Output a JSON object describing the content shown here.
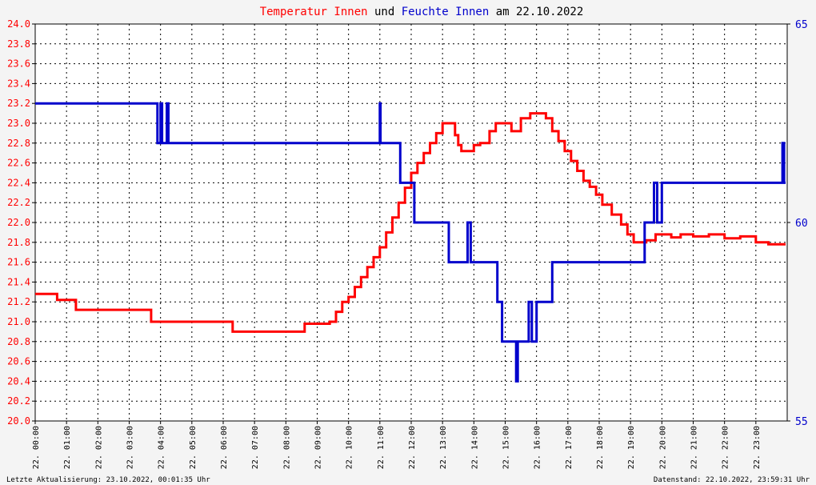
{
  "chart_data": {
    "type": "line",
    "title_parts": {
      "t1": "Temperatur Innen",
      "t2": " und ",
      "t3": "Feuchte Innen",
      "t4": " am 22.10.2022"
    },
    "left_axis": {
      "ylim": [
        20.0,
        24.0
      ],
      "ticks": [
        "20.0",
        "20.2",
        "20.4",
        "20.6",
        "20.8",
        "21.0",
        "21.2",
        "21.4",
        "21.6",
        "21.8",
        "22.0",
        "22.2",
        "22.4",
        "22.6",
        "22.8",
        "23.0",
        "23.2",
        "23.4",
        "23.6",
        "23.8",
        "24.0"
      ],
      "color": "#ff0000"
    },
    "right_axis": {
      "ylim": [
        55,
        65
      ],
      "ticks": [
        "55",
        "60",
        "65"
      ],
      "color": "#0000cc"
    },
    "x_axis": {
      "xlim": [
        0,
        24
      ],
      "ticks": [
        "22. 00:00",
        "22. 01:00",
        "22. 02:00",
        "22. 03:00",
        "22. 04:00",
        "22. 05:00",
        "22. 06:00",
        "22. 07:00",
        "22. 08:00",
        "22. 09:00",
        "22. 10:00",
        "22. 11:00",
        "22. 12:00",
        "22. 13:00",
        "22. 14:00",
        "22. 15:00",
        "22. 16:00",
        "22. 17:00",
        "22. 18:00",
        "22. 19:00",
        "22. 20:00",
        "22. 21:00",
        "22. 22:00",
        "22. 23:00"
      ]
    },
    "grid": true,
    "series": [
      {
        "axis": "left",
        "color": "#ff0000",
        "x": [
          0,
          0.7,
          0.7,
          1.3,
          1.3,
          2.0,
          2.9,
          3.7,
          3.7,
          4.3,
          5.5,
          6.3,
          6.3,
          7.4,
          8.2,
          8.6,
          9.4,
          9.6,
          9.8,
          10.0,
          10.2,
          10.4,
          10.6,
          10.8,
          11.0,
          11.2,
          11.4,
          11.6,
          11.8,
          12.0,
          12.2,
          12.4,
          12.6,
          12.8,
          13.0,
          13.2,
          13.4,
          13.5,
          13.6,
          13.8,
          14.0,
          14.2,
          14.5,
          14.7,
          15.0,
          15.2,
          15.5,
          15.8,
          16.2,
          16.3,
          16.5,
          16.7,
          16.9,
          17.1,
          17.3,
          17.5,
          17.7,
          17.9,
          18.1,
          18.4,
          18.7,
          18.9,
          19.1,
          19.3,
          19.5,
          19.8,
          20.0,
          20.3,
          20.6,
          21.0,
          21.5,
          22.0,
          22.5,
          23.0,
          23.4,
          23.95
        ],
        "y": [
          21.28,
          21.28,
          21.22,
          21.22,
          21.12,
          21.12,
          21.12,
          21.12,
          21.0,
          21.0,
          21.0,
          21.0,
          20.9,
          20.9,
          20.9,
          20.98,
          21.0,
          21.1,
          21.2,
          21.25,
          21.35,
          21.45,
          21.55,
          21.65,
          21.75,
          21.9,
          22.05,
          22.2,
          22.35,
          22.5,
          22.6,
          22.7,
          22.8,
          22.9,
          23.0,
          23.0,
          22.88,
          22.78,
          22.72,
          22.72,
          22.78,
          22.8,
          22.92,
          23.0,
          23.0,
          22.92,
          23.05,
          23.1,
          23.1,
          23.05,
          22.92,
          22.82,
          22.72,
          22.62,
          22.52,
          22.42,
          22.36,
          22.28,
          22.18,
          22.08,
          21.98,
          21.88,
          21.8,
          21.8,
          21.82,
          21.88,
          21.88,
          21.85,
          21.88,
          21.86,
          21.88,
          21.84,
          21.86,
          21.8,
          21.78,
          21.78
        ]
      },
      {
        "axis": "right",
        "color": "#0000cc",
        "x": [
          0,
          3.9,
          3.9,
          4.0,
          4.0,
          4.05,
          4.05,
          4.2,
          4.2,
          4.25,
          4.25,
          11.0,
          11.0,
          11.02,
          11.05,
          11.65,
          11.65,
          12.1,
          12.1,
          12.3,
          12.3,
          13.2,
          13.2,
          13.8,
          13.8,
          13.9,
          13.9,
          14.0,
          14.0,
          14.75,
          14.75,
          14.9,
          14.9,
          15.35,
          15.35,
          15.4,
          15.4,
          15.75,
          15.75,
          15.85,
          15.85,
          16.0,
          16.0,
          16.25,
          16.25,
          16.5,
          16.5,
          17.4,
          17.4,
          19.45,
          19.45,
          19.75,
          19.75,
          19.85,
          19.85,
          20.0,
          20.0,
          20.35,
          20.35,
          20.45,
          20.45,
          23.85,
          23.85,
          23.9,
          23.9,
          23.95
        ],
        "y": [
          63.0,
          63.0,
          62.0,
          62.0,
          63.0,
          63.0,
          62.0,
          62.0,
          63.0,
          63.0,
          62.0,
          62.0,
          63.0,
          62.0,
          62.0,
          62.0,
          61.0,
          61.0,
          60.0,
          60.0,
          60.0,
          60.0,
          59.0,
          59.0,
          60.0,
          60.0,
          59.0,
          59.0,
          59.0,
          59.0,
          58.0,
          58.0,
          57.0,
          57.0,
          56.0,
          57.0,
          57.0,
          57.0,
          58.0,
          58.0,
          57.0,
          57.0,
          58.0,
          58.0,
          58.0,
          58.0,
          59.0,
          59.0,
          59.0,
          59.0,
          60.0,
          60.0,
          61.0,
          61.0,
          60.0,
          60.0,
          61.0,
          61.0,
          61.0,
          61.0,
          61.0,
          61.0,
          62.0,
          61.0,
          61.0,
          61.0
        ]
      }
    ]
  },
  "footer": {
    "left": "Letzte Aktualisierung: 23.10.2022, 00:01:35 Uhr",
    "right": "Datenstand: 22.10.2022, 23:59:31 Uhr"
  }
}
